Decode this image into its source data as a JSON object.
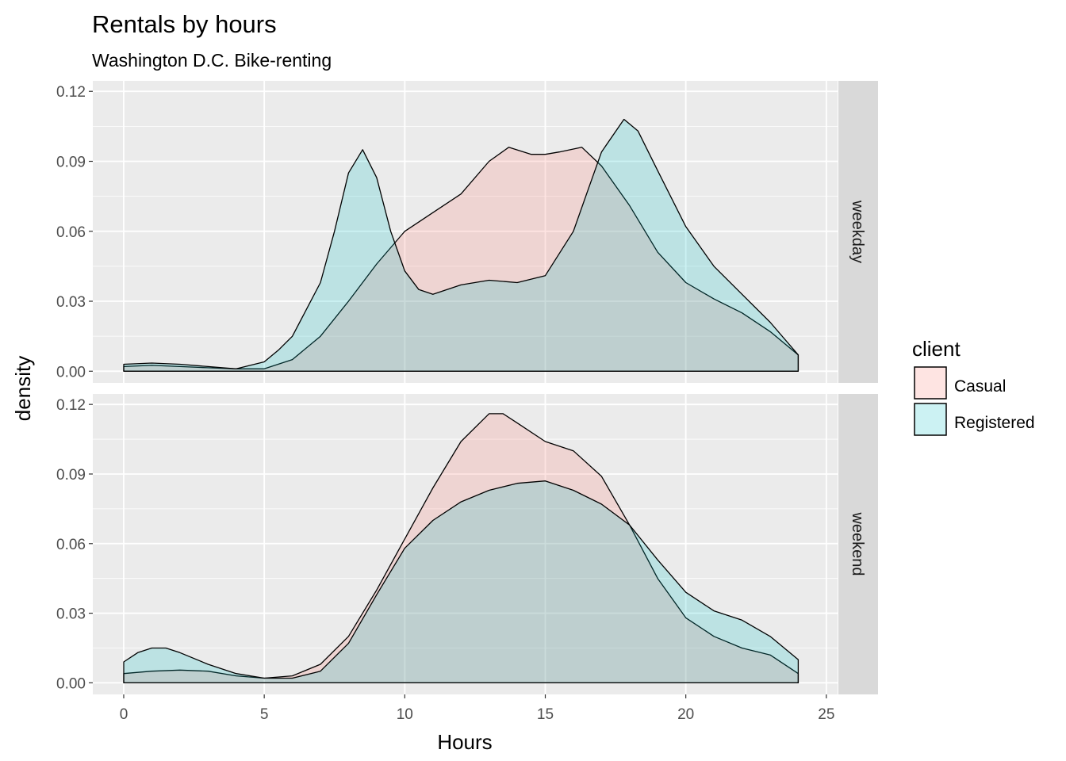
{
  "chart_data": {
    "type": "area",
    "title": "Rentals by hours",
    "subtitle": "Washington D.C. Bike-renting",
    "xlabel": "Hours",
    "ylabel": "density",
    "xlim": [
      -1.1,
      25.4
    ],
    "ylim": [
      -0.005,
      0.1245
    ],
    "x_ticks": [
      0,
      5,
      10,
      15,
      20,
      25
    ],
    "y_ticks": [
      0.0,
      0.03,
      0.06,
      0.09,
      0.12
    ],
    "y_tick_labels": [
      "0.00",
      "0.03",
      "0.06",
      "0.09",
      "0.12"
    ],
    "grid": true,
    "legend": {
      "title": "client",
      "placement": "right",
      "entries": [
        {
          "name": "Casual",
          "color": "#F8766D"
        },
        {
          "name": "Registered",
          "color": "#00BFC4"
        }
      ]
    },
    "panels": [
      {
        "facet": "weekday",
        "series": [
          {
            "name": "Casual",
            "color": "#F8766D",
            "x": [
              0,
              1,
              2,
              3,
              4,
              5,
              6,
              7,
              8,
              9,
              10,
              11,
              12,
              13,
              13.7,
              14.5,
              15,
              15.5,
              16.3,
              17,
              18,
              19,
              20,
              21,
              22,
              23,
              24
            ],
            "y": [
              0.002,
              0.0025,
              0.002,
              0.0015,
              0.001,
              0.001,
              0.005,
              0.015,
              0.03,
              0.046,
              0.06,
              0.068,
              0.076,
              0.09,
              0.096,
              0.093,
              0.093,
              0.094,
              0.096,
              0.088,
              0.071,
              0.051,
              0.038,
              0.031,
              0.025,
              0.017,
              0.007
            ]
          },
          {
            "name": "Registered",
            "color": "#00BFC4",
            "x": [
              0,
              1,
              2,
              3,
              4,
              5,
              5.5,
              6,
              7,
              7.5,
              8,
              8.5,
              9,
              9.5,
              10,
              10.5,
              11,
              12,
              13,
              14,
              15,
              16,
              16.5,
              17,
              17.8,
              18.3,
              19,
              20,
              21,
              22,
              23,
              24
            ],
            "y": [
              0.003,
              0.0035,
              0.003,
              0.002,
              0.001,
              0.004,
              0.009,
              0.015,
              0.038,
              0.06,
              0.085,
              0.095,
              0.083,
              0.06,
              0.043,
              0.035,
              0.033,
              0.037,
              0.039,
              0.038,
              0.041,
              0.06,
              0.077,
              0.094,
              0.108,
              0.103,
              0.086,
              0.062,
              0.045,
              0.033,
              0.021,
              0.007
            ]
          }
        ]
      },
      {
        "facet": "weekend",
        "series": [
          {
            "name": "Casual",
            "color": "#F8766D",
            "x": [
              0,
              1,
              2,
              3,
              4,
              5,
              6,
              7,
              8,
              9,
              10,
              11,
              12,
              13,
              13.5,
              14,
              15,
              16,
              17,
              18,
              19,
              20,
              21,
              22,
              23,
              24
            ],
            "y": [
              0.004,
              0.005,
              0.0055,
              0.005,
              0.003,
              0.002,
              0.003,
              0.008,
              0.02,
              0.04,
              0.062,
              0.084,
              0.104,
              0.116,
              0.116,
              0.112,
              0.104,
              0.1,
              0.089,
              0.068,
              0.045,
              0.028,
              0.02,
              0.015,
              0.012,
              0.004
            ]
          },
          {
            "name": "Registered",
            "color": "#00BFC4",
            "x": [
              0,
              0.5,
              1,
              1.5,
              2,
              3,
              4,
              5,
              6,
              7,
              8,
              9,
              10,
              11,
              12,
              13,
              14,
              15,
              16,
              17,
              18,
              19,
              20,
              21,
              22,
              23,
              24
            ],
            "y": [
              0.009,
              0.013,
              0.015,
              0.015,
              0.013,
              0.008,
              0.004,
              0.002,
              0.002,
              0.005,
              0.017,
              0.038,
              0.058,
              0.07,
              0.078,
              0.083,
              0.086,
              0.087,
              0.083,
              0.077,
              0.068,
              0.053,
              0.039,
              0.031,
              0.027,
              0.02,
              0.01
            ]
          }
        ]
      }
    ]
  }
}
